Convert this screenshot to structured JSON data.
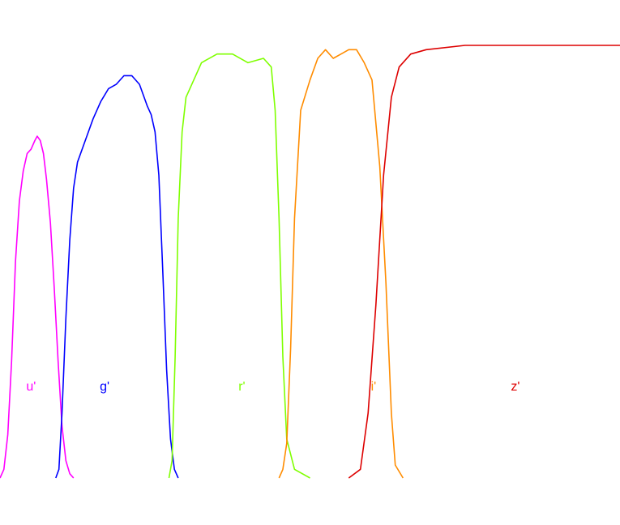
{
  "chart_data": {
    "type": "line",
    "title": "",
    "xlabel": "",
    "ylabel": "",
    "xlim": [
      300,
      1100
    ],
    "ylim": [
      0,
      1.0
    ],
    "grid": false,
    "legend": "none",
    "series": [
      {
        "name": "u'",
        "color": "#ff00ff",
        "points": [
          [
            300,
            0.0
          ],
          [
            305,
            0.02
          ],
          [
            310,
            0.1
          ],
          [
            315,
            0.27
          ],
          [
            320,
            0.5
          ],
          [
            325,
            0.64
          ],
          [
            330,
            0.71
          ],
          [
            335,
            0.75
          ],
          [
            340,
            0.76
          ],
          [
            345,
            0.78
          ],
          [
            348,
            0.79
          ],
          [
            352,
            0.78
          ],
          [
            356,
            0.75
          ],
          [
            360,
            0.69
          ],
          [
            365,
            0.59
          ],
          [
            370,
            0.44
          ],
          [
            375,
            0.27
          ],
          [
            380,
            0.12
          ],
          [
            385,
            0.04
          ],
          [
            390,
            0.01
          ],
          [
            395,
            0.0
          ]
        ]
      },
      {
        "name": "g'",
        "color": "#0000ff",
        "points": [
          [
            372,
            0.0
          ],
          [
            376,
            0.02
          ],
          [
            380,
            0.15
          ],
          [
            385,
            0.37
          ],
          [
            390,
            0.55
          ],
          [
            395,
            0.67
          ],
          [
            400,
            0.73
          ],
          [
            410,
            0.78
          ],
          [
            420,
            0.83
          ],
          [
            430,
            0.87
          ],
          [
            440,
            0.9
          ],
          [
            450,
            0.91
          ],
          [
            460,
            0.93
          ],
          [
            470,
            0.93
          ],
          [
            480,
            0.91
          ],
          [
            490,
            0.86
          ],
          [
            495,
            0.84
          ],
          [
            500,
            0.8
          ],
          [
            505,
            0.7
          ],
          [
            510,
            0.48
          ],
          [
            515,
            0.25
          ],
          [
            520,
            0.09
          ],
          [
            525,
            0.02
          ],
          [
            530,
            0.0
          ]
        ]
      },
      {
        "name": "r'",
        "color": "#7fff00",
        "points": [
          [
            518,
            0.0
          ],
          [
            522,
            0.04
          ],
          [
            526,
            0.28
          ],
          [
            530,
            0.6
          ],
          [
            535,
            0.8
          ],
          [
            540,
            0.88
          ],
          [
            550,
            0.92
          ],
          [
            560,
            0.96
          ],
          [
            580,
            0.98
          ],
          [
            600,
            0.98
          ],
          [
            620,
            0.96
          ],
          [
            640,
            0.97
          ],
          [
            650,
            0.95
          ],
          [
            655,
            0.85
          ],
          [
            660,
            0.6
          ],
          [
            665,
            0.28
          ],
          [
            670,
            0.09
          ],
          [
            680,
            0.02
          ],
          [
            700,
            0.0
          ]
        ]
      },
      {
        "name": "i'",
        "color": "#ff8c00",
        "points": [
          [
            660,
            0.0
          ],
          [
            665,
            0.02
          ],
          [
            670,
            0.08
          ],
          [
            675,
            0.3
          ],
          [
            680,
            0.6
          ],
          [
            688,
            0.85
          ],
          [
            700,
            0.92
          ],
          [
            710,
            0.97
          ],
          [
            720,
            0.99
          ],
          [
            730,
            0.97
          ],
          [
            740,
            0.98
          ],
          [
            750,
            0.99
          ],
          [
            760,
            0.99
          ],
          [
            770,
            0.96
          ],
          [
            780,
            0.92
          ],
          [
            790,
            0.72
          ],
          [
            798,
            0.45
          ],
          [
            805,
            0.15
          ],
          [
            810,
            0.03
          ],
          [
            820,
            0.0
          ]
        ]
      },
      {
        "name": "z'",
        "color": "#dd0000",
        "points": [
          [
            750,
            0.0
          ],
          [
            765,
            0.02
          ],
          [
            775,
            0.15
          ],
          [
            785,
            0.4
          ],
          [
            795,
            0.7
          ],
          [
            805,
            0.88
          ],
          [
            815,
            0.95
          ],
          [
            830,
            0.98
          ],
          [
            850,
            0.99
          ],
          [
            900,
            1.0
          ],
          [
            950,
            1.0
          ],
          [
            1000,
            1.0
          ],
          [
            1050,
            1.0
          ],
          [
            1100,
            1.0
          ]
        ]
      }
    ],
    "labels": [
      {
        "text": "u'",
        "x": 340,
        "color": "#ff00ff"
      },
      {
        "text": "g'",
        "x": 435,
        "color": "#0000ff"
      },
      {
        "text": "r'",
        "x": 612,
        "color": "#7fff00"
      },
      {
        "text": "i'",
        "x": 782,
        "color": "#ff8c00"
      },
      {
        "text": "z'",
        "x": 965,
        "color": "#dd0000"
      }
    ]
  }
}
